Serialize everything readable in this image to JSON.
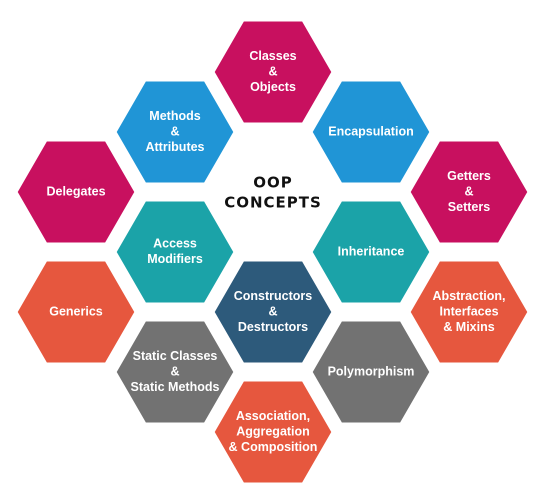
{
  "center": {
    "lines": [
      "OOP",
      "CONCEPTS"
    ]
  },
  "colors": {
    "magenta": "#c8105f",
    "blue": "#2095d6",
    "teal": "#1ba3a8",
    "orange": "#e6573e",
    "gray": "#727272",
    "navy": "#2d5a7b",
    "center_fill": "#ffffff",
    "center_text": "#111111"
  },
  "hexes": [
    {
      "name": "classes-objects",
      "color": "magenta",
      "lines": [
        "Classes",
        "&",
        "Objects"
      ]
    },
    {
      "name": "methods-attributes",
      "color": "blue",
      "lines": [
        "Methods",
        "&",
        "Attributes"
      ]
    },
    {
      "name": "encapsulation",
      "color": "blue",
      "lines": [
        "Encapsulation"
      ]
    },
    {
      "name": "delegates",
      "color": "magenta",
      "lines": [
        "Delegates"
      ]
    },
    {
      "name": "getters-setters",
      "color": "magenta",
      "lines": [
        "Getters",
        "&",
        "Setters"
      ]
    },
    {
      "name": "access-modifiers",
      "color": "teal",
      "lines": [
        "Access",
        "Modifiers"
      ]
    },
    {
      "name": "inheritance",
      "color": "teal",
      "lines": [
        "Inheritance"
      ]
    },
    {
      "name": "generics",
      "color": "orange",
      "lines": [
        "Generics"
      ]
    },
    {
      "name": "constructors-destructors",
      "color": "navy",
      "lines": [
        "Constructors",
        "&",
        "Destructors"
      ]
    },
    {
      "name": "abstraction-interfaces-mixins",
      "color": "orange",
      "lines": [
        "Abstraction,",
        "Interfaces",
        "& Mixins"
      ]
    },
    {
      "name": "static-classes-methods",
      "color": "gray",
      "lines": [
        "Static Classes",
        "&",
        "Static Methods"
      ]
    },
    {
      "name": "polymorphism",
      "color": "gray",
      "lines": [
        "Polymorphism"
      ]
    },
    {
      "name": "association-aggregation-composition",
      "color": "orange",
      "lines": [
        "Association,",
        "Aggregation",
        "& Composition"
      ]
    }
  ]
}
